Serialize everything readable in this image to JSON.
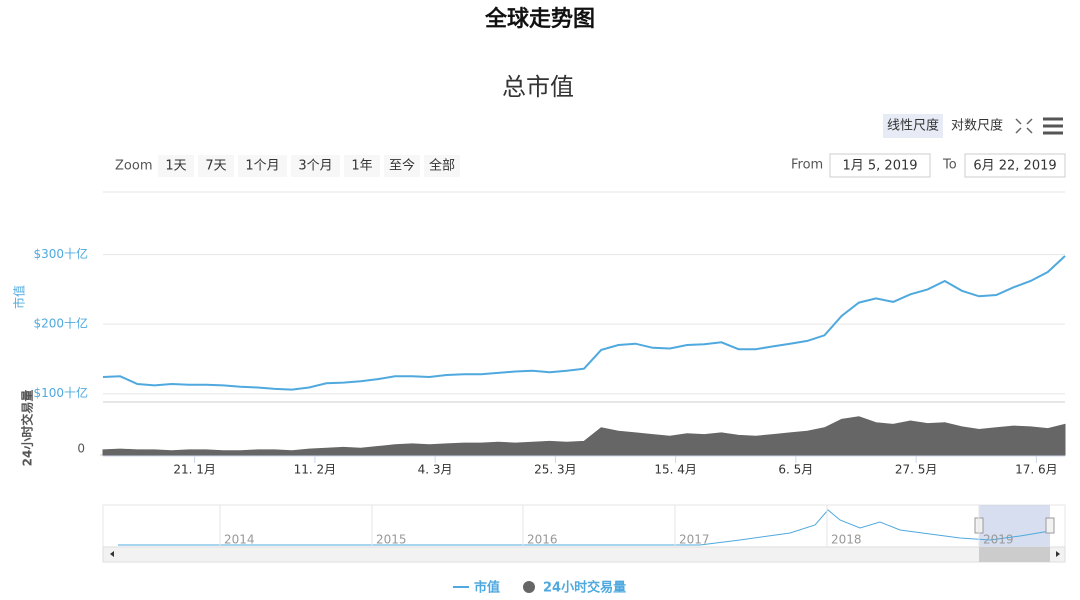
{
  "chart_data": {
    "type": "line",
    "title": "全球走势图",
    "subtitle": "总市值",
    "ylabel": "市值",
    "y2label": "24小时交易量",
    "x": [
      "2019-01-05",
      "2019-01-08",
      "2019-01-11",
      "2019-01-14",
      "2019-01-17",
      "2019-01-20",
      "2019-01-23",
      "2019-01-26",
      "2019-01-29",
      "2019-02-01",
      "2019-02-04",
      "2019-02-07",
      "2019-02-10",
      "2019-02-13",
      "2019-02-16",
      "2019-02-19",
      "2019-02-22",
      "2019-02-25",
      "2019-02-28",
      "2019-03-03",
      "2019-03-06",
      "2019-03-09",
      "2019-03-12",
      "2019-03-15",
      "2019-03-18",
      "2019-03-21",
      "2019-03-24",
      "2019-03-27",
      "2019-03-30",
      "2019-04-02",
      "2019-04-05",
      "2019-04-08",
      "2019-04-11",
      "2019-04-14",
      "2019-04-17",
      "2019-04-20",
      "2019-04-23",
      "2019-04-26",
      "2019-04-29",
      "2019-05-02",
      "2019-05-05",
      "2019-05-08",
      "2019-05-11",
      "2019-05-14",
      "2019-05-17",
      "2019-05-20",
      "2019-05-23",
      "2019-05-26",
      "2019-05-29",
      "2019-06-01",
      "2019-06-04",
      "2019-06-07",
      "2019-06-10",
      "2019-06-13",
      "2019-06-16",
      "2019-06-19",
      "2019-06-22"
    ],
    "xlim": [
      "2019-01-05",
      "2019-06-22"
    ],
    "xticks": [
      {
        "value": "2019-01-21",
        "label": "21. 1月"
      },
      {
        "value": "2019-02-11",
        "label": "11. 2月"
      },
      {
        "value": "2019-03-04",
        "label": "4. 3月"
      },
      {
        "value": "2019-03-25",
        "label": "25. 3月"
      },
      {
        "value": "2019-04-15",
        "label": "15. 4月"
      },
      {
        "value": "2019-05-06",
        "label": "6. 5月"
      },
      {
        "value": "2019-05-27",
        "label": "27. 5月"
      },
      {
        "value": "2019-06-17",
        "label": "17. 6月"
      }
    ],
    "ylim": [
      91,
      390
    ],
    "yticks": [
      {
        "value": 100,
        "label": "$100十亿"
      },
      {
        "value": 200,
        "label": "$200十亿"
      },
      {
        "value": 300,
        "label": "$300十亿"
      }
    ],
    "y2lim": [
      0,
      60
    ],
    "y2ticks": [
      0
    ],
    "grid": true,
    "series": [
      {
        "name": "市值",
        "color": "#4fa9de",
        "axis": "y",
        "type": "line",
        "values": [
          124,
          125,
          114,
          112,
          114,
          113,
          113,
          112,
          110,
          109,
          107,
          106,
          109,
          115,
          116,
          118,
          121,
          125,
          125,
          124,
          127,
          128,
          128,
          130,
          132,
          133,
          131,
          133,
          136,
          163,
          170,
          172,
          166,
          165,
          170,
          171,
          174,
          164,
          164,
          168,
          172,
          176,
          184,
          212,
          231,
          237,
          232,
          243,
          250,
          262,
          248,
          240,
          242,
          253,
          262,
          275,
          298
        ]
      },
      {
        "name": "24小时交易量",
        "color": "#666666",
        "axis": "y2",
        "type": "area",
        "values": [
          6,
          7,
          6,
          6,
          5,
          6,
          6,
          5,
          5,
          6,
          6,
          5,
          7,
          8,
          9,
          8,
          10,
          12,
          13,
          12,
          13,
          14,
          14,
          15,
          14,
          15,
          16,
          15,
          16,
          32,
          28,
          26,
          24,
          22,
          25,
          24,
          26,
          23,
          22,
          24,
          26,
          28,
          32,
          42,
          45,
          38,
          36,
          40,
          37,
          38,
          33,
          30,
          32,
          34,
          33,
          31,
          36
        ]
      }
    ]
  },
  "ui": {
    "zoom_label": "Zoom",
    "zoom_buttons": [
      "1天",
      "7天",
      "1个月",
      "3个月",
      "1年",
      "至今",
      "全部"
    ],
    "from_label": "From",
    "from_value": "1月 5, 2019",
    "to_label": "To",
    "to_value": "6月 22, 2019",
    "scale_buttons": [
      "线性尺度",
      "对数尺度"
    ]
  },
  "navigator": {
    "labels": [
      "2014",
      "2015",
      "2016",
      "2017",
      "2018",
      "2019"
    ]
  }
}
